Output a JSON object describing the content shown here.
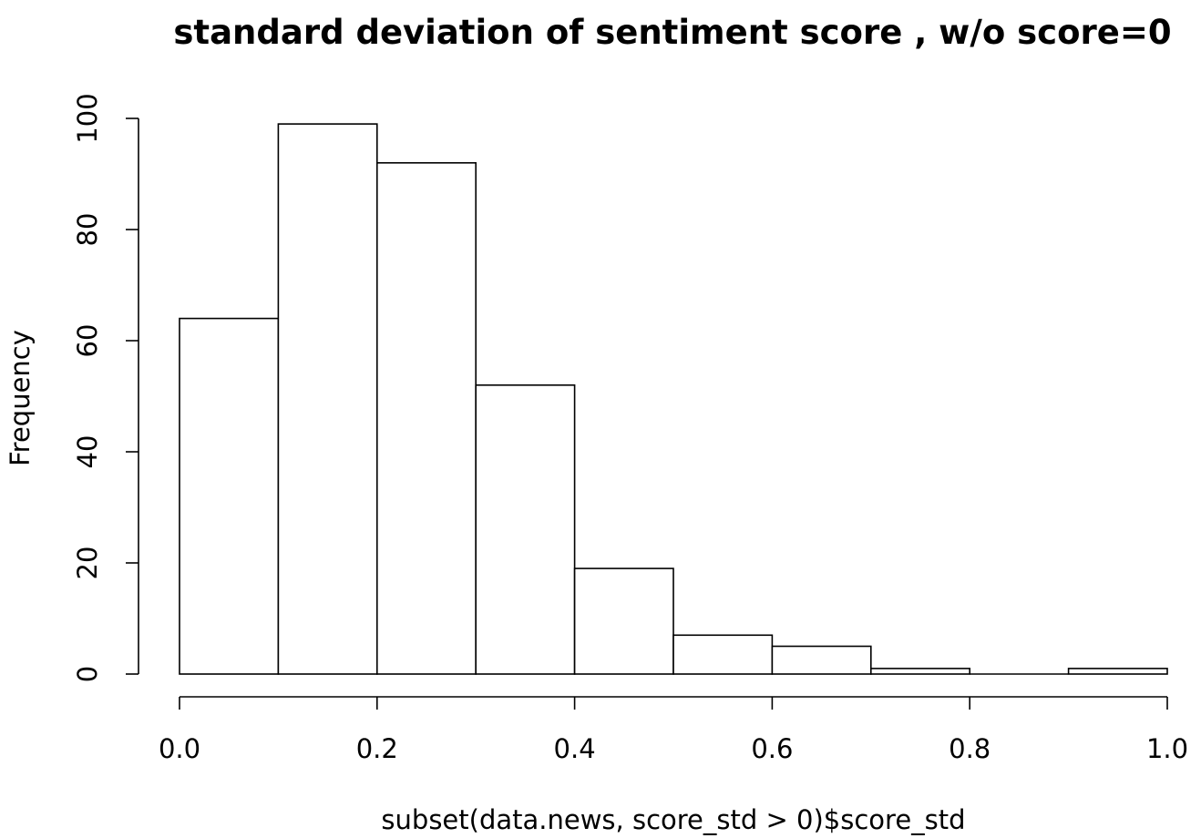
{
  "chart_data": {
    "type": "bar",
    "title": "standard deviation of sentiment score , w/o score=0",
    "xlabel": "subset(data.news, score_std > 0)$score_std",
    "ylabel": "Frequency",
    "bins": [
      {
        "from": 0.0,
        "to": 0.1,
        "count": 64
      },
      {
        "from": 0.1,
        "to": 0.2,
        "count": 99
      },
      {
        "from": 0.2,
        "to": 0.3,
        "count": 92
      },
      {
        "from": 0.3,
        "to": 0.4,
        "count": 52
      },
      {
        "from": 0.4,
        "to": 0.5,
        "count": 19
      },
      {
        "from": 0.5,
        "to": 0.6,
        "count": 7
      },
      {
        "from": 0.6,
        "to": 0.7,
        "count": 5
      },
      {
        "from": 0.7,
        "to": 0.8,
        "count": 1
      },
      {
        "from": 0.8,
        "to": 0.9,
        "count": 0
      },
      {
        "from": 0.9,
        "to": 1.0,
        "count": 1
      }
    ],
    "xlim": [
      0.0,
      1.0
    ],
    "ylim": [
      0,
      100
    ],
    "x_ticks": [
      "0.0",
      "0.2",
      "0.4",
      "0.6",
      "0.8",
      "1.0"
    ],
    "y_ticks": [
      "0",
      "20",
      "40",
      "60",
      "80",
      "100"
    ],
    "grid": false,
    "bar_fill": "#ffffff",
    "bar_stroke": "#000000"
  }
}
